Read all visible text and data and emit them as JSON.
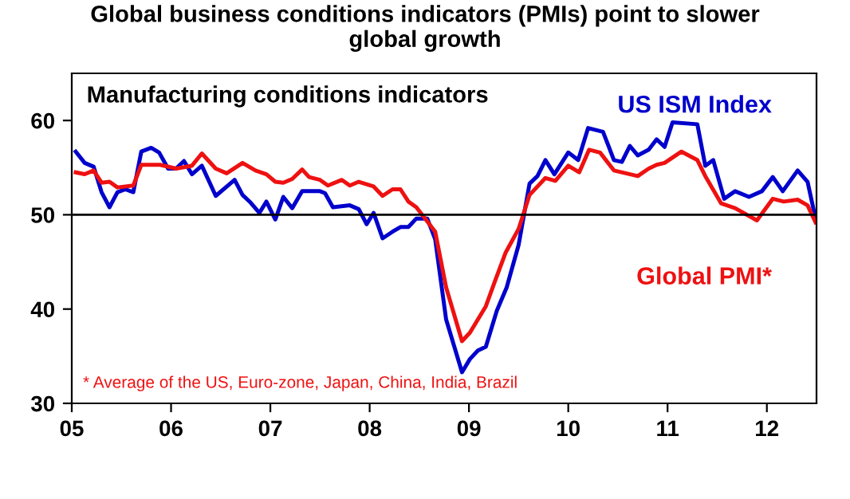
{
  "chart_data": {
    "type": "line",
    "title": "Global business conditions indicators (PMIs) point to slower\nglobal growth",
    "subtitle": "Manufacturing conditions indicators",
    "annotations": [
      "* Average of the US, Euro-zone, Japan, China, India, Brazil"
    ],
    "series": [
      {
        "name": "US ISM Index",
        "color": "#0000cc",
        "x": [
          5.04,
          5.13,
          5.22,
          5.3,
          5.38,
          5.46,
          5.54,
          5.62,
          5.7,
          5.8,
          5.88,
          5.97,
          6.05,
          6.13,
          6.21,
          6.31,
          6.45,
          6.64,
          6.72,
          6.8,
          6.89,
          6.96,
          7.05,
          7.13,
          7.22,
          7.32,
          7.5,
          7.55,
          7.63,
          7.8,
          7.89,
          7.97,
          8.04,
          8.13,
          8.23,
          8.31,
          8.39,
          8.47,
          8.58,
          8.66,
          8.77,
          8.93,
          9.01,
          9.09,
          9.17,
          9.28,
          9.38,
          9.5,
          9.61,
          9.69,
          9.77,
          9.86,
          10.0,
          10.1,
          10.2,
          10.35,
          10.46,
          10.54,
          10.62,
          10.7,
          10.81,
          10.89,
          10.97,
          11.05,
          11.3,
          11.38,
          11.46,
          11.57,
          11.68,
          11.82,
          11.95,
          12.06,
          12.16,
          12.31,
          12.41,
          12.49
        ],
        "values": [
          56.7,
          55.5,
          55.1,
          52.4,
          50.8,
          52.4,
          52.7,
          52.4,
          56.7,
          57.1,
          56.6,
          54.9,
          54.9,
          55.7,
          54.3,
          55.2,
          52.0,
          53.7,
          52.1,
          51.3,
          50.2,
          51.4,
          49.5,
          51.9,
          50.7,
          52.5,
          52.5,
          52.3,
          50.8,
          51.0,
          50.6,
          49.0,
          50.2,
          47.5,
          48.2,
          48.7,
          48.7,
          49.6,
          49.6,
          47.4,
          38.9,
          33.3,
          34.7,
          35.6,
          36.0,
          39.8,
          42.3,
          46.8,
          53.3,
          54.1,
          55.8,
          54.3,
          56.6,
          55.8,
          59.2,
          58.8,
          55.8,
          55.6,
          57.3,
          56.3,
          56.9,
          58.0,
          57.2,
          59.8,
          59.6,
          55.2,
          55.8,
          51.7,
          52.5,
          51.9,
          52.5,
          54.0,
          52.5,
          54.7,
          53.5,
          49.6
        ]
      },
      {
        "name": "Global PMI*",
        "color": "#ee1111",
        "x": [
          5.04,
          5.13,
          5.22,
          5.3,
          5.38,
          5.46,
          5.62,
          5.7,
          5.89,
          6.05,
          6.21,
          6.31,
          6.45,
          6.56,
          6.72,
          6.85,
          6.96,
          7.05,
          7.13,
          7.22,
          7.32,
          7.39,
          7.5,
          7.58,
          7.72,
          7.8,
          7.89,
          8.04,
          8.13,
          8.23,
          8.31,
          8.39,
          8.47,
          8.58,
          8.66,
          8.77,
          8.93,
          9.01,
          9.17,
          9.26,
          9.37,
          9.5,
          9.61,
          9.77,
          9.87,
          10.0,
          10.11,
          10.21,
          10.32,
          10.46,
          10.7,
          10.81,
          10.89,
          10.97,
          11.14,
          11.3,
          11.38,
          11.54,
          11.68,
          11.9,
          12.06,
          12.17,
          12.31,
          12.41,
          12.49
        ],
        "values": [
          54.5,
          54.3,
          54.7,
          53.4,
          53.5,
          52.9,
          53.1,
          55.3,
          55.3,
          54.9,
          55.2,
          56.5,
          54.9,
          54.4,
          55.5,
          54.7,
          54.3,
          53.5,
          53.4,
          53.8,
          54.8,
          54.0,
          53.7,
          53.1,
          53.7,
          53.1,
          53.5,
          53.0,
          52.0,
          52.7,
          52.7,
          51.4,
          50.8,
          49.3,
          48.2,
          42.3,
          36.6,
          37.5,
          40.3,
          42.9,
          46.0,
          48.5,
          52.1,
          53.9,
          53.6,
          55.2,
          54.5,
          56.9,
          56.6,
          54.7,
          54.1,
          54.9,
          55.3,
          55.5,
          56.7,
          55.8,
          54.1,
          51.2,
          50.7,
          49.4,
          51.7,
          51.4,
          51.6,
          51.0,
          49.2
        ]
      }
    ],
    "xlim": [
      5,
      12.5
    ],
    "xticks": [
      {
        "value": 5,
        "label": "05"
      },
      {
        "value": 6,
        "label": "06"
      },
      {
        "value": 7,
        "label": "07"
      },
      {
        "value": 8,
        "label": "08"
      },
      {
        "value": 9,
        "label": "09"
      },
      {
        "value": 10,
        "label": "10"
      },
      {
        "value": 11,
        "label": "11"
      },
      {
        "value": 12,
        "label": "12"
      }
    ],
    "ylim": [
      30,
      65
    ],
    "yticks": [
      30,
      40,
      50,
      60
    ],
    "ref_lines": [
      {
        "axis": "y",
        "value": 50,
        "color": "#000000"
      }
    ],
    "grid": false,
    "legend": false
  }
}
